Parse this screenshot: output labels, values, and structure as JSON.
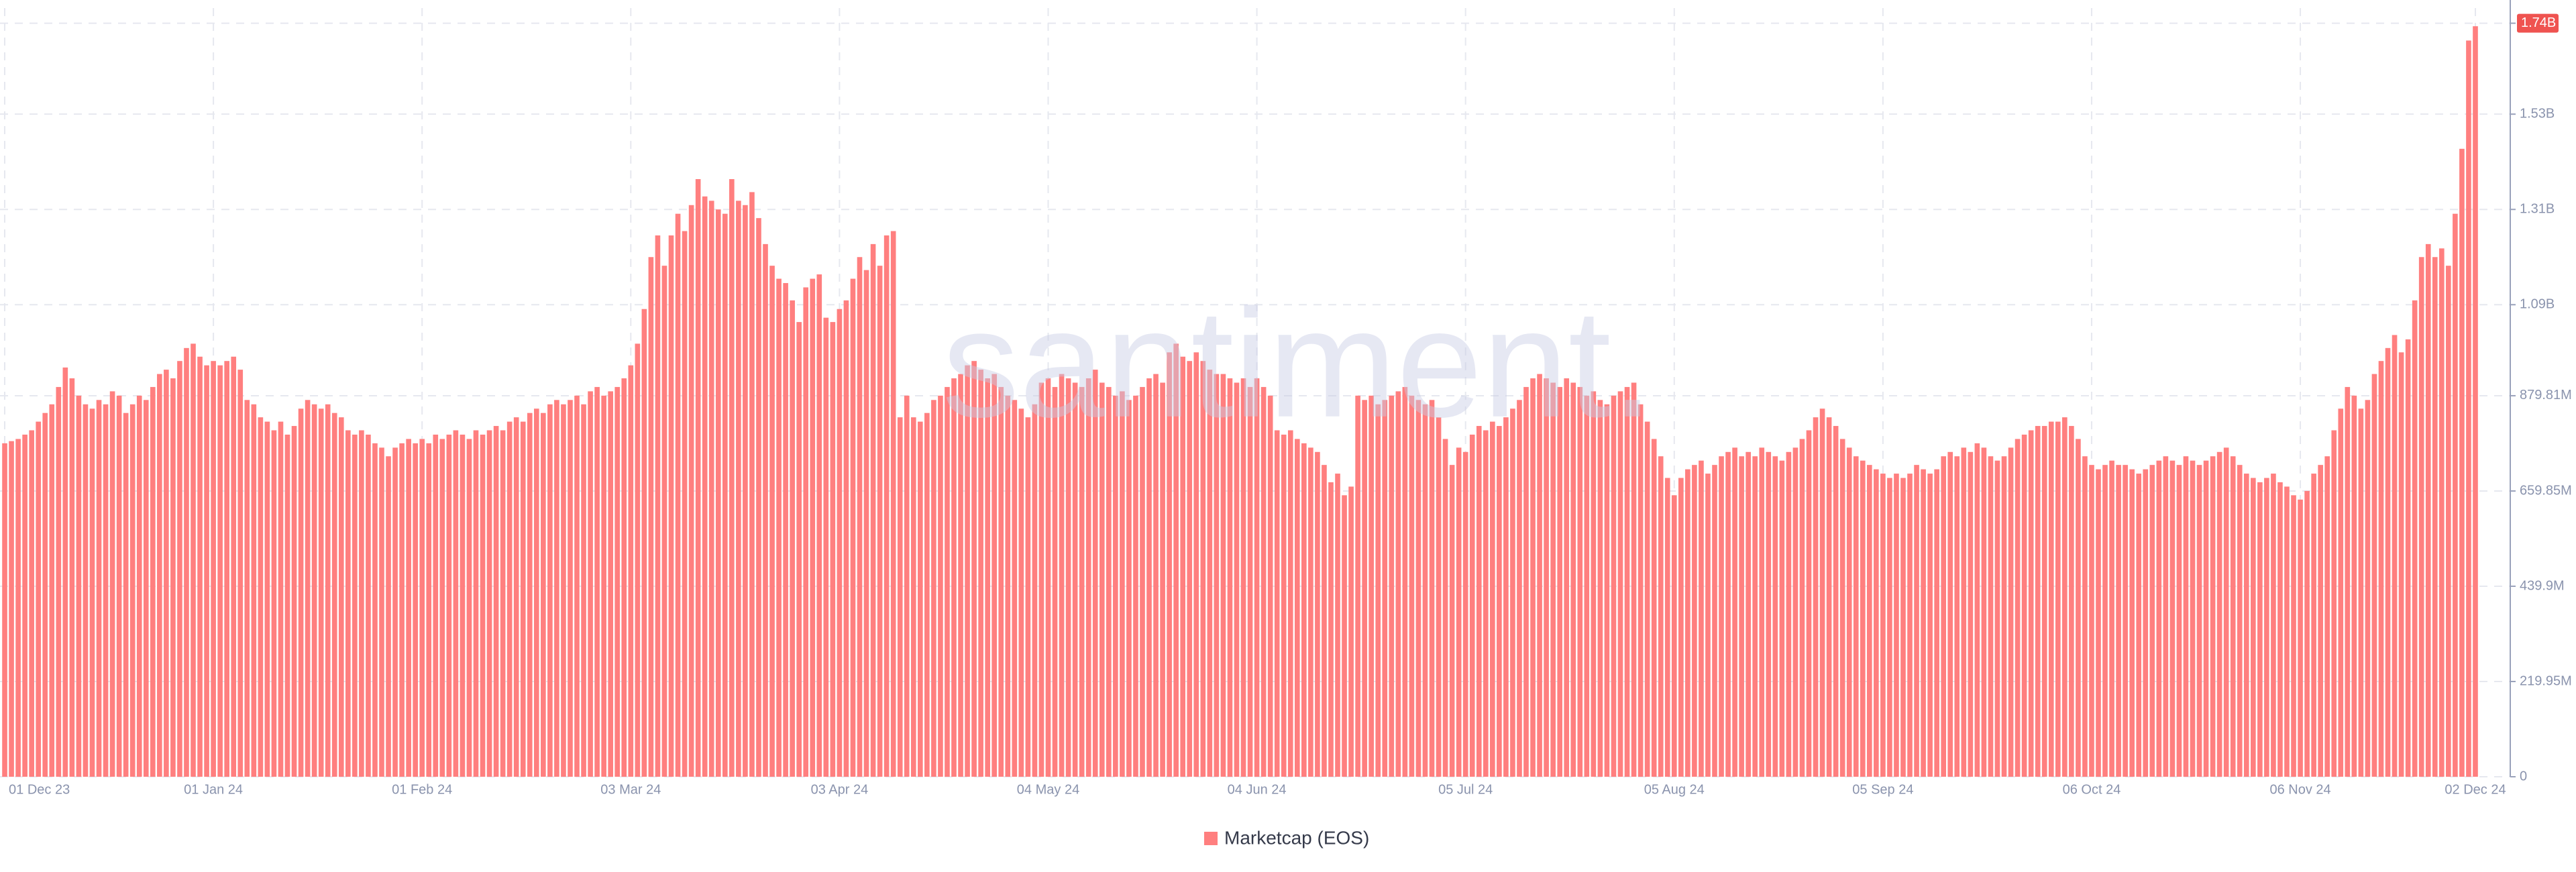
{
  "chart_data": {
    "type": "bar",
    "watermark": "santiment.",
    "categories": [
      "01 Dec 23",
      null,
      null,
      null,
      null,
      null,
      null,
      null,
      null,
      null,
      null,
      null,
      null,
      null,
      null,
      null,
      null,
      null,
      null,
      null,
      null,
      null,
      null,
      null,
      null,
      null,
      null,
      null,
      null,
      null,
      null,
      "01 Jan 24",
      null,
      null,
      null,
      null,
      null,
      null,
      null,
      null,
      null,
      null,
      null,
      null,
      null,
      null,
      null,
      null,
      null,
      null,
      null,
      null,
      null,
      null,
      null,
      null,
      null,
      null,
      null,
      null,
      null,
      null,
      "01 Feb 24",
      null,
      null,
      null,
      null,
      null,
      null,
      null,
      null,
      null,
      null,
      null,
      null,
      null,
      null,
      null,
      null,
      null,
      null,
      null,
      null,
      null,
      null,
      null,
      null,
      null,
      null,
      null,
      null,
      null,
      null,
      "03 Mar 24",
      null,
      null,
      null,
      null,
      null,
      null,
      null,
      null,
      null,
      null,
      null,
      null,
      null,
      null,
      null,
      null,
      null,
      null,
      null,
      null,
      null,
      null,
      null,
      null,
      null,
      null,
      null,
      null,
      null,
      null,
      "03 Apr 24",
      null,
      null,
      null,
      null,
      null,
      null,
      null,
      null,
      null,
      null,
      null,
      null,
      null,
      null,
      null,
      null,
      null,
      null,
      null,
      null,
      null,
      null,
      null,
      null,
      null,
      null,
      null,
      null,
      null,
      null,
      "04 May 24",
      null,
      null,
      null,
      null,
      null,
      null,
      null,
      null,
      null,
      null,
      null,
      null,
      null,
      null,
      null,
      null,
      null,
      null,
      null,
      null,
      null,
      null,
      null,
      null,
      null,
      null,
      null,
      null,
      null,
      null,
      "04 Jun 24",
      null,
      null,
      null,
      null,
      null,
      null,
      null,
      null,
      null,
      null,
      null,
      null,
      null,
      null,
      null,
      null,
      null,
      null,
      null,
      null,
      null,
      null,
      null,
      null,
      null,
      null,
      null,
      null,
      null,
      null,
      "05 Jul 24",
      null,
      null,
      null,
      null,
      null,
      null,
      null,
      null,
      null,
      null,
      null,
      null,
      null,
      null,
      null,
      null,
      null,
      null,
      null,
      null,
      null,
      null,
      null,
      null,
      null,
      null,
      null,
      null,
      null,
      null,
      "05 Aug 24",
      null,
      null,
      null,
      null,
      null,
      null,
      null,
      null,
      null,
      null,
      null,
      null,
      null,
      null,
      null,
      null,
      null,
      null,
      null,
      null,
      null,
      null,
      null,
      null,
      null,
      null,
      null,
      null,
      null,
      null,
      "05 Sep 24",
      null,
      null,
      null,
      null,
      null,
      null,
      null,
      null,
      null,
      null,
      null,
      null,
      null,
      null,
      null,
      null,
      null,
      null,
      null,
      null,
      null,
      null,
      null,
      null,
      null,
      null,
      null,
      null,
      null,
      null,
      "06 Oct 24",
      null,
      null,
      null,
      null,
      null,
      null,
      null,
      null,
      null,
      null,
      null,
      null,
      null,
      null,
      null,
      null,
      null,
      null,
      null,
      null,
      null,
      null,
      null,
      null,
      null,
      null,
      null,
      null,
      null,
      null,
      "06 Nov 24",
      null,
      null,
      null,
      null,
      null,
      null,
      null,
      null,
      null,
      null,
      null,
      null,
      null,
      null,
      null,
      null,
      null,
      null,
      null,
      null,
      null,
      null,
      null,
      null,
      null,
      "02 Dec 24"
    ],
    "series": [
      {
        "name": "Marketcap (EOS)",
        "color": "#ff7f7f",
        "values": [
          770,
          775,
          780,
          790,
          800,
          820,
          840,
          860,
          900,
          945,
          920,
          880,
          860,
          850,
          870,
          860,
          890,
          880,
          840,
          860,
          880,
          870,
          900,
          930,
          940,
          920,
          960,
          990,
          1000,
          970,
          950,
          960,
          950,
          960,
          970,
          940,
          870,
          860,
          830,
          820,
          800,
          820,
          790,
          810,
          850,
          870,
          860,
          850,
          860,
          840,
          830,
          800,
          790,
          800,
          790,
          770,
          760,
          740,
          760,
          770,
          780,
          770,
          780,
          770,
          790,
          780,
          790,
          800,
          790,
          780,
          800,
          790,
          800,
          810,
          800,
          820,
          830,
          820,
          840,
          850,
          840,
          860,
          870,
          860,
          870,
          880,
          860,
          890,
          900,
          880,
          890,
          900,
          920,
          950,
          1000,
          1080,
          1200,
          1250,
          1180,
          1250,
          1300,
          1260,
          1320,
          1380,
          1340,
          1330,
          1310,
          1300,
          1380,
          1330,
          1320,
          1350,
          1290,
          1230,
          1180,
          1150,
          1140,
          1100,
          1050,
          1130,
          1150,
          1160,
          1060,
          1050,
          1080,
          1100,
          1150,
          1200,
          1170,
          1230,
          1180,
          1250,
          1260,
          830,
          880,
          830,
          820,
          840,
          870,
          880,
          900,
          920,
          930,
          950,
          960,
          940,
          920,
          930,
          900,
          880,
          870,
          850,
          830,
          860,
          910,
          920,
          900,
          930,
          920,
          910,
          900,
          920,
          940,
          910,
          900,
          880,
          890,
          870,
          880,
          900,
          920,
          930,
          910,
          980,
          1000,
          970,
          960,
          980,
          960,
          940,
          930,
          930,
          920,
          910,
          920,
          900,
          920,
          900,
          880,
          800,
          790,
          800,
          780,
          770,
          760,
          750,
          720,
          680,
          700,
          650,
          670,
          880,
          870,
          880,
          860,
          870,
          880,
          890,
          900,
          880,
          870,
          860,
          870,
          830,
          780,
          720,
          760,
          750,
          790,
          810,
          800,
          820,
          810,
          830,
          850,
          870,
          900,
          920,
          930,
          920,
          910,
          900,
          920,
          910,
          900,
          880,
          890,
          870,
          860,
          880,
          890,
          900,
          910,
          860,
          820,
          780,
          740,
          690,
          650,
          690,
          710,
          720,
          730,
          700,
          720,
          740,
          750,
          760,
          740,
          750,
          740,
          760,
          750,
          740,
          730,
          750,
          760,
          780,
          800,
          830,
          850,
          830,
          810,
          780,
          760,
          740,
          730,
          720,
          710,
          700,
          690,
          700,
          690,
          700,
          720,
          710,
          700,
          710,
          740,
          750,
          740,
          760,
          750,
          770,
          760,
          740,
          730,
          740,
          760,
          780,
          790,
          800,
          810,
          810,
          820,
          820,
          830,
          810,
          780,
          740,
          720,
          710,
          720,
          730,
          720,
          720,
          710,
          700,
          710,
          720,
          730,
          740,
          730,
          720,
          740,
          730,
          720,
          730,
          740,
          750,
          760,
          740,
          720,
          700,
          690,
          680,
          690,
          700,
          680,
          670,
          650,
          640,
          660,
          700,
          720,
          740,
          800,
          850,
          900,
          880,
          850,
          870,
          930,
          960,
          990,
          1020,
          980,
          1010,
          1100,
          1200,
          1230,
          1200,
          1220,
          1180,
          1300,
          1450,
          1700,
          1733
        ]
      }
    ],
    "ylim": [
      0,
      1775
    ],
    "yticks": [
      0,
      {
        "value": 219.95,
        "label": "219.95M"
      },
      {
        "value": 439.9,
        "label": "439.9M"
      },
      {
        "value": 659.85,
        "label": "659.85M"
      },
      {
        "value": 879.81,
        "label": "879.81M"
      },
      {
        "value": 1090,
        "label": "1.09B"
      },
      {
        "value": 1310,
        "label": "1.31B"
      },
      {
        "value": 1530,
        "label": "1.53B"
      },
      {
        "value": 1740,
        "label": "1.74B"
      }
    ],
    "highlight_last_tick": true,
    "grid": true,
    "legend": "bottom"
  }
}
